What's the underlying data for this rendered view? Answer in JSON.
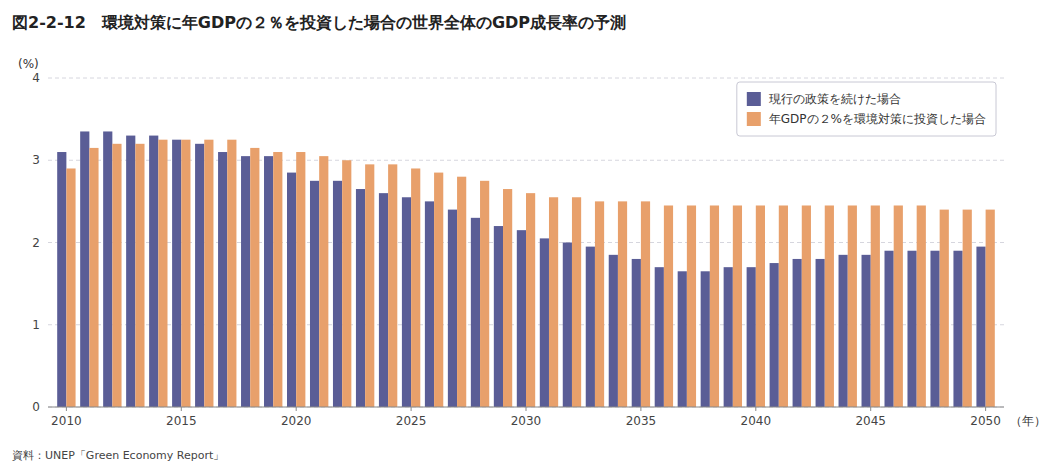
{
  "chart_data": {
    "type": "bar",
    "title": "図2-2-12　環境対策に年GDPの２％を投資した場合の世界全体のGDP成長率の予測",
    "ylabel": "(%)",
    "xlabel": "（年）",
    "source": "資料：UNEP「Green Economy Report」",
    "categories": [
      "2010",
      null,
      null,
      null,
      null,
      "2015",
      null,
      null,
      null,
      null,
      "2020",
      null,
      null,
      null,
      null,
      "2025",
      null,
      null,
      null,
      null,
      "2030",
      null,
      null,
      null,
      null,
      "2035",
      null,
      null,
      null,
      null,
      "2040",
      null,
      null,
      null,
      null,
      "2045",
      null,
      null,
      null,
      null,
      "2050"
    ],
    "series": [
      {
        "name": "現行の政策を続けた場合",
        "color": "#5a5d96",
        "values": [
          3.1,
          3.35,
          3.35,
          3.3,
          3.3,
          3.25,
          3.2,
          3.1,
          3.05,
          3.05,
          2.85,
          2.75,
          2.75,
          2.65,
          2.6,
          2.55,
          2.5,
          2.4,
          2.3,
          2.2,
          2.15,
          2.05,
          2.0,
          1.95,
          1.85,
          1.8,
          1.7,
          1.65,
          1.65,
          1.7,
          1.7,
          1.75,
          1.8,
          1.8,
          1.85,
          1.85,
          1.9,
          1.9,
          1.9,
          1.9,
          1.95
        ]
      },
      {
        "name": "年GDPの２%を環境対策に投資した場合",
        "color": "#e8a06b",
        "values": [
          2.9,
          3.15,
          3.2,
          3.2,
          3.25,
          3.25,
          3.25,
          3.25,
          3.15,
          3.1,
          3.1,
          3.05,
          3.0,
          2.95,
          2.95,
          2.9,
          2.85,
          2.8,
          2.75,
          2.65,
          2.6,
          2.55,
          2.55,
          2.5,
          2.5,
          2.5,
          2.45,
          2.45,
          2.45,
          2.45,
          2.45,
          2.45,
          2.45,
          2.45,
          2.45,
          2.45,
          2.45,
          2.45,
          2.4,
          2.4,
          2.4
        ]
      }
    ],
    "ylim": [
      0,
      4
    ],
    "yticks": [
      0,
      1,
      2,
      3,
      4
    ],
    "grid": true,
    "legend": "upper right"
  }
}
